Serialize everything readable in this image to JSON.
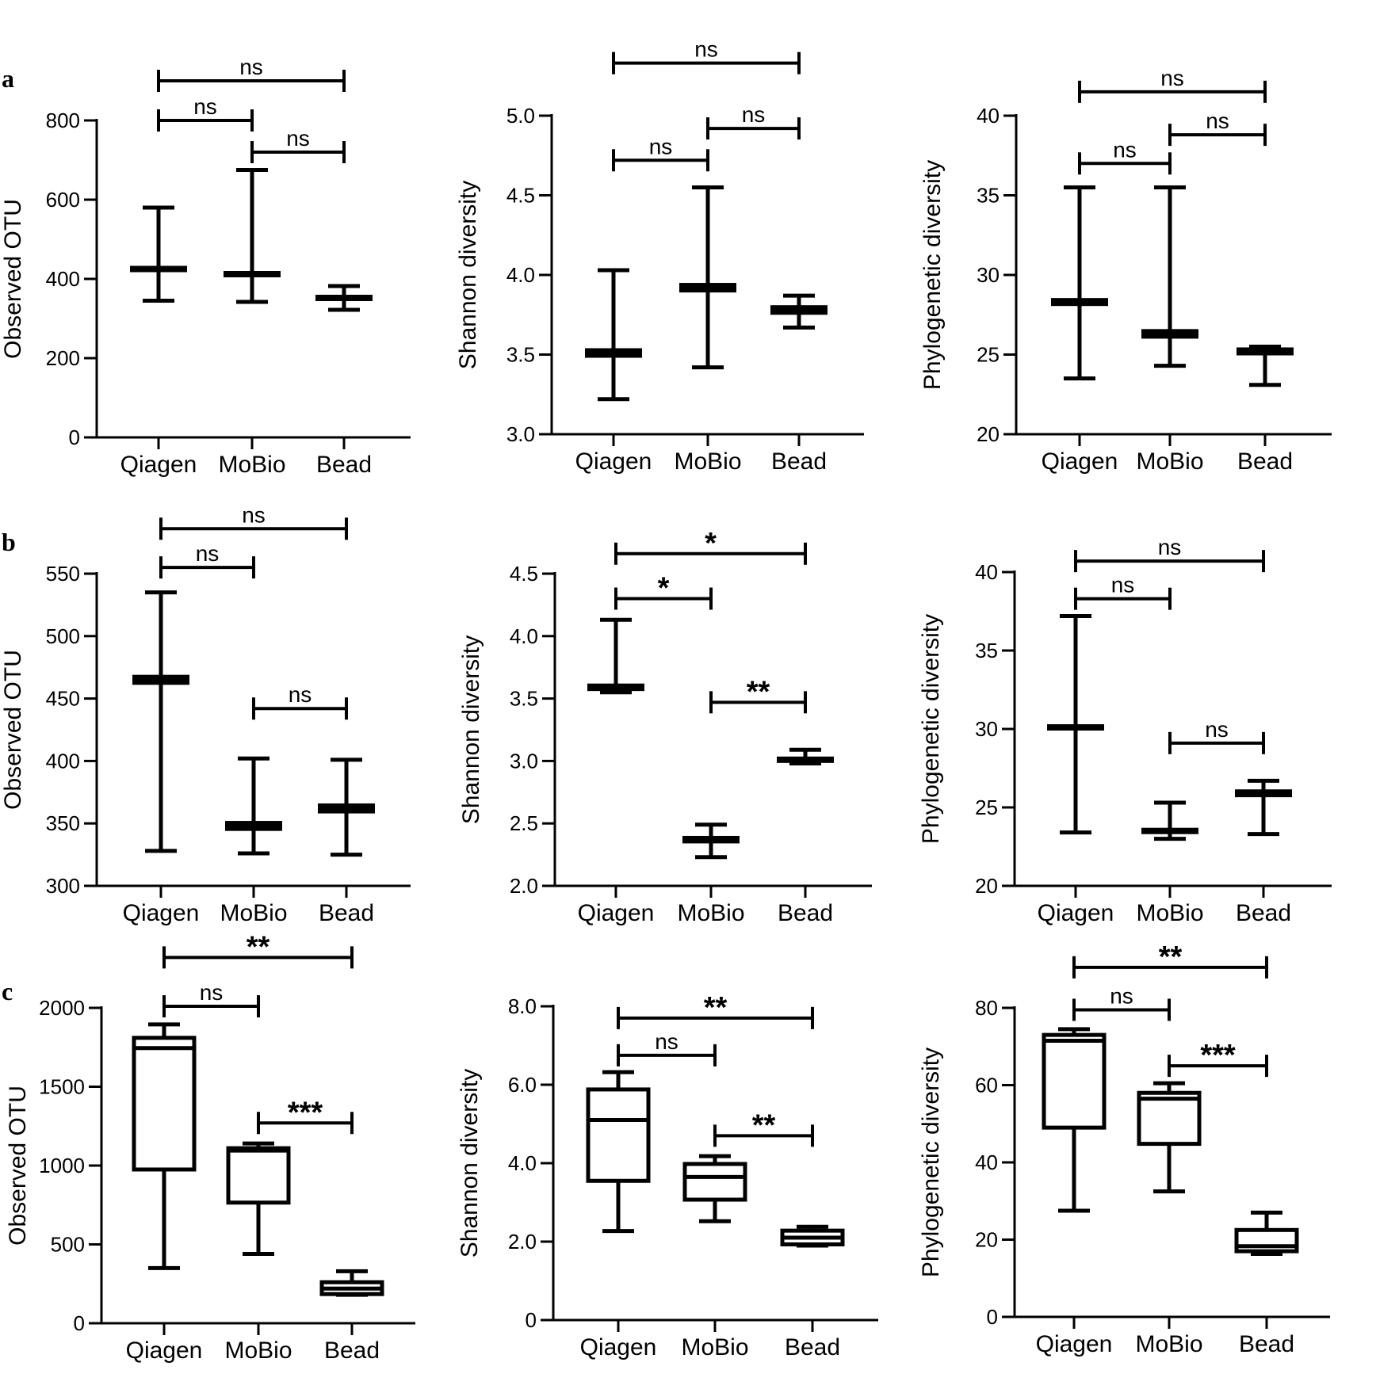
{
  "panel_letters": [
    "a",
    "b",
    "c"
  ],
  "chart_data": [
    {
      "type": "box",
      "row": "a",
      "ylabel": "Observed OTU",
      "categories": [
        "Qiagen",
        "MoBio",
        "Bead"
      ],
      "ylim": [
        0,
        800
      ],
      "yticks": [
        0,
        200,
        400,
        600,
        800
      ],
      "tick_format": "int",
      "style": "band",
      "boxes": [
        {
          "min": 345,
          "q1": 418,
          "median": 425,
          "q3": 432,
          "max": 580
        },
        {
          "min": 342,
          "q1": 405,
          "median": 412,
          "q3": 419,
          "max": 675
        },
        {
          "min": 322,
          "q1": 345,
          "median": 352,
          "q3": 360,
          "max": 382
        }
      ],
      "comparisons": [
        {
          "from": 0,
          "to": 2,
          "label": "ns",
          "y": 900
        },
        {
          "from": 0,
          "to": 1,
          "label": "ns",
          "y": 800
        },
        {
          "from": 1,
          "to": 2,
          "label": "ns",
          "y": 720
        }
      ]
    },
    {
      "type": "box",
      "row": "a",
      "ylabel": "Shannon diversity",
      "categories": [
        "Qiagen",
        "MoBio",
        "Bead"
      ],
      "ylim": [
        3.0,
        5.0
      ],
      "yticks": [
        3.0,
        3.5,
        4.0,
        4.5,
        5.0
      ],
      "tick_format": "1dp",
      "style": "band",
      "boxes": [
        {
          "min": 3.22,
          "q1": 3.48,
          "median": 3.51,
          "q3": 3.54,
          "max": 4.03
        },
        {
          "min": 3.42,
          "q1": 3.89,
          "median": 3.92,
          "q3": 3.95,
          "max": 4.55
        },
        {
          "min": 3.67,
          "q1": 3.75,
          "median": 3.78,
          "q3": 3.81,
          "max": 3.87
        }
      ],
      "comparisons": [
        {
          "from": 0,
          "to": 2,
          "label": "ns",
          "y": 5.33
        },
        {
          "from": 0,
          "to": 1,
          "label": "ns",
          "y": 4.72
        },
        {
          "from": 1,
          "to": 2,
          "label": "ns",
          "y": 4.92
        }
      ]
    },
    {
      "type": "box",
      "row": "a",
      "ylabel": "Phylogenetic diversity",
      "categories": [
        "Qiagen",
        "MoBio",
        "Bead"
      ],
      "ylim": [
        20,
        40
      ],
      "yticks": [
        20,
        25,
        30,
        35,
        40
      ],
      "tick_format": "int",
      "style": "band",
      "boxes": [
        {
          "min": 23.5,
          "q1": 28.1,
          "median": 28.3,
          "q3": 28.6,
          "max": 35.5
        },
        {
          "min": 24.3,
          "q1": 26.0,
          "median": 26.3,
          "q3": 26.6,
          "max": 35.5
        },
        {
          "min": 23.1,
          "q1": 25.0,
          "median": 25.2,
          "q3": 25.5,
          "max": 25.5
        }
      ],
      "comparisons": [
        {
          "from": 0,
          "to": 2,
          "label": "ns",
          "y": 41.5
        },
        {
          "from": 0,
          "to": 1,
          "label": "ns",
          "y": 37.0
        },
        {
          "from": 1,
          "to": 2,
          "label": "ns",
          "y": 38.8
        }
      ]
    },
    {
      "type": "box",
      "row": "b",
      "ylabel": "Observed OTU",
      "categories": [
        "Qiagen",
        "MoBio",
        "Bead"
      ],
      "ylim": [
        300,
        550
      ],
      "yticks": [
        300,
        350,
        400,
        450,
        500,
        550
      ],
      "tick_format": "int",
      "style": "band",
      "boxes": [
        {
          "min": 328,
          "q1": 461,
          "median": 465,
          "q3": 469,
          "max": 535
        },
        {
          "min": 326,
          "q1": 344,
          "median": 348,
          "q3": 352,
          "max": 402
        },
        {
          "min": 325,
          "q1": 358,
          "median": 362,
          "q3": 366,
          "max": 401
        }
      ],
      "comparisons": [
        {
          "from": 0,
          "to": 2,
          "label": "ns",
          "y": 586
        },
        {
          "from": 0,
          "to": 1,
          "label": "ns",
          "y": 555
        },
        {
          "from": 1,
          "to": 2,
          "label": "ns",
          "y": 442
        }
      ]
    },
    {
      "type": "box",
      "row": "b",
      "ylabel": "Shannon diversity",
      "categories": [
        "Qiagen",
        "MoBio",
        "Bead"
      ],
      "ylim": [
        2.0,
        4.5
      ],
      "yticks": [
        2.0,
        2.5,
        3.0,
        3.5,
        4.0,
        4.5
      ],
      "tick_format": "1dp",
      "style": "band",
      "boxes": [
        {
          "min": 3.55,
          "q1": 3.56,
          "median": 3.59,
          "q3": 3.62,
          "max": 4.13
        },
        {
          "min": 2.23,
          "q1": 2.34,
          "median": 2.37,
          "q3": 2.4,
          "max": 2.49
        },
        {
          "min": 2.98,
          "q1": 2.99,
          "median": 3.01,
          "q3": 3.04,
          "max": 3.09
        }
      ],
      "comparisons": [
        {
          "from": 0,
          "to": 2,
          "label": "*",
          "y": 4.66
        },
        {
          "from": 0,
          "to": 1,
          "label": "*",
          "y": 4.3
        },
        {
          "from": 1,
          "to": 2,
          "label": "**",
          "y": 3.47
        }
      ]
    },
    {
      "type": "box",
      "row": "b",
      "ylabel": "Phylogenetic diversity",
      "categories": [
        "Qiagen",
        "MoBio",
        "Bead"
      ],
      "ylim": [
        20,
        40
      ],
      "yticks": [
        20,
        25,
        30,
        35,
        40
      ],
      "tick_format": "int",
      "style": "band",
      "boxes": [
        {
          "min": 23.4,
          "q1": 29.9,
          "median": 30.1,
          "q3": 30.3,
          "max": 37.2
        },
        {
          "min": 23.0,
          "q1": 23.3,
          "median": 23.5,
          "q3": 23.7,
          "max": 25.3
        },
        {
          "min": 23.3,
          "q1": 25.7,
          "median": 25.9,
          "q3": 26.2,
          "max": 26.7
        }
      ],
      "comparisons": [
        {
          "from": 0,
          "to": 2,
          "label": "ns",
          "y": 40.7
        },
        {
          "from": 0,
          "to": 1,
          "label": "ns",
          "y": 38.3
        },
        {
          "from": 1,
          "to": 2,
          "label": "ns",
          "y": 29.1
        }
      ]
    },
    {
      "type": "box",
      "row": "c",
      "ylabel": "Observed OTU",
      "categories": [
        "Qiagen",
        "MoBio",
        "Bead"
      ],
      "ylim": [
        0,
        2000
      ],
      "yticks": [
        0,
        500,
        1000,
        1500,
        2000
      ],
      "tick_format": "int",
      "style": "box",
      "boxes": [
        {
          "min": 350,
          "q1": 975,
          "median": 1745,
          "q3": 1810,
          "max": 1895
        },
        {
          "min": 440,
          "q1": 765,
          "median": 1095,
          "q3": 1110,
          "max": 1140
        },
        {
          "min": 180,
          "q1": 185,
          "median": 220,
          "q3": 260,
          "max": 330
        }
      ],
      "comparisons": [
        {
          "from": 0,
          "to": 2,
          "label": "**",
          "y": 2320
        },
        {
          "from": 0,
          "to": 1,
          "label": "ns",
          "y": 2010
        },
        {
          "from": 1,
          "to": 2,
          "label": "***",
          "y": 1270
        }
      ]
    },
    {
      "type": "box",
      "row": "c",
      "ylabel": "Shannon diversity",
      "categories": [
        "Qiagen",
        "MoBio",
        "Bead"
      ],
      "ylim": [
        0,
        8.0
      ],
      "yticks": [
        0,
        2.0,
        4.0,
        6.0,
        8.0
      ],
      "tick_format": "zero0",
      "style": "box",
      "boxes": [
        {
          "min": 2.27,
          "q1": 3.55,
          "median": 5.1,
          "q3": 5.88,
          "max": 6.32
        },
        {
          "min": 2.52,
          "q1": 3.07,
          "median": 3.65,
          "q3": 3.98,
          "max": 4.18
        },
        {
          "min": 1.9,
          "q1": 1.93,
          "median": 2.1,
          "q3": 2.28,
          "max": 2.38
        }
      ],
      "comparisons": [
        {
          "from": 0,
          "to": 2,
          "label": "**",
          "y": 7.7
        },
        {
          "from": 0,
          "to": 1,
          "label": "ns",
          "y": 6.75
        },
        {
          "from": 1,
          "to": 2,
          "label": "**",
          "y": 4.7
        }
      ]
    },
    {
      "type": "box",
      "row": "c",
      "ylabel": "Phylogenetic diversity",
      "categories": [
        "Qiagen",
        "MoBio",
        "Bead"
      ],
      "ylim": [
        0,
        80
      ],
      "yticks": [
        0,
        20,
        40,
        60,
        80
      ],
      "tick_format": "int",
      "style": "box",
      "boxes": [
        {
          "min": 27.5,
          "q1": 49,
          "median": 71.5,
          "q3": 73,
          "max": 74.5
        },
        {
          "min": 32.5,
          "q1": 44.8,
          "median": 56.5,
          "q3": 58,
          "max": 60.5
        },
        {
          "min": 16.3,
          "q1": 17,
          "median": 18.3,
          "q3": 22.5,
          "max": 27
        }
      ],
      "comparisons": [
        {
          "from": 0,
          "to": 2,
          "label": "**",
          "y": 90.5
        },
        {
          "from": 0,
          "to": 1,
          "label": "ns",
          "y": 79.5
        },
        {
          "from": 1,
          "to": 2,
          "label": "***",
          "y": 65
        }
      ]
    }
  ]
}
